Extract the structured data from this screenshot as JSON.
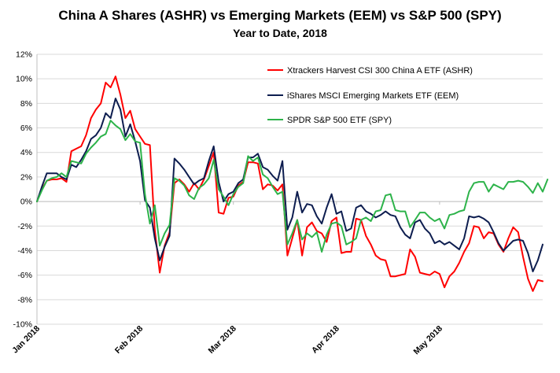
{
  "chart_data": {
    "type": "line",
    "title": "China A Shares (ASHR) vs Emerging Markets (EEM) vs S&P 500 (SPY)",
    "subtitle": "Year to Date, 2018",
    "xlabel": "",
    "ylabel": "",
    "ylim": [
      -10,
      12
    ],
    "yticks": [
      -10,
      -8,
      -6,
      -4,
      -2,
      0,
      2,
      4,
      6,
      8,
      10,
      12
    ],
    "ytick_labels": [
      "-10%",
      "-8%",
      "-6%",
      "-4%",
      "-2%",
      "0%",
      "2%",
      "4%",
      "6%",
      "8%",
      "10%",
      "12%"
    ],
    "x_tick_positions": [
      0,
      21,
      40,
      61,
      82
    ],
    "x_tick_labels": [
      "Jan 2018",
      "Feb 2018",
      "Mar 2018",
      "Apr 2018",
      "May 2018"
    ],
    "xlim": [
      0,
      103
    ],
    "grid": "horizontal",
    "legend_position": "top-right",
    "series": [
      {
        "name": "Xtrackers Harvest CSI 300 China A ETF (ASHR)",
        "color": "#ff0000",
        "values": [
          0,
          1.0,
          1.7,
          1.8,
          1.8,
          1.9,
          1.6,
          4.1,
          4.3,
          4.5,
          5.4,
          6.8,
          7.5,
          8.0,
          9.7,
          9.3,
          10.2,
          8.7,
          6.8,
          7.4,
          5.9,
          5.3,
          4.7,
          4.6,
          -2.3,
          -5.8,
          -3.6,
          -2.5,
          1.5,
          1.8,
          1.4,
          0.8,
          1.5,
          1.0,
          1.8,
          2.9,
          4.0,
          -0.9,
          -1.0,
          0.3,
          0.4,
          1.3,
          1.6,
          3.2,
          3.2,
          3.1,
          1.0,
          1.4,
          1.3,
          0.9,
          1.4,
          -4.4,
          -3.0,
          -1.5,
          -4.4,
          -2.1,
          -1.7,
          -2.4,
          -2.6,
          -3.3,
          -1.6,
          -1.3,
          -4.2,
          -4.1,
          -4.1,
          -1.4,
          -1.5,
          -2.8,
          -3.5,
          -4.4,
          -4.7,
          -4.8,
          -6.1,
          -6.1,
          -6.0,
          -5.9,
          -3.9,
          -4.5,
          -5.8,
          -5.9,
          -6.0,
          -5.7,
          -5.9,
          -7.0,
          -6.1,
          -5.7,
          -5.0,
          -4.1,
          -3.4,
          -2.0,
          -2.1,
          -3.0,
          -2.5,
          -2.6,
          -3.5,
          -4.1,
          -3.0,
          -2.1,
          -2.5,
          -4.5,
          -6.3,
          -7.3,
          -6.4,
          -6.5
        ]
      },
      {
        "name": "iShares MSCI Emerging Markets ETF (EEM)",
        "color": "#0d1d4f",
        "values": [
          0,
          1.2,
          2.3,
          2.3,
          2.3,
          2.0,
          1.8,
          3.0,
          2.8,
          3.4,
          4.1,
          5.1,
          5.4,
          6.0,
          7.2,
          6.8,
          8.4,
          7.5,
          5.3,
          6.3,
          4.9,
          3.3,
          0.1,
          -0.5,
          -3.0,
          -4.8,
          -3.7,
          -2.8,
          3.5,
          3.1,
          2.6,
          2.0,
          1.4,
          1.7,
          1.9,
          3.3,
          4.5,
          1.6,
          0.0,
          0.6,
          0.8,
          1.5,
          1.8,
          3.6,
          3.6,
          3.9,
          2.8,
          2.6,
          2.1,
          1.7,
          3.3,
          -2.3,
          -1.3,
          0.8,
          -0.9,
          -0.2,
          -0.3,
          -1.2,
          -1.8,
          -0.5,
          0.6,
          -1.0,
          -0.8,
          -2.4,
          -2.2,
          -0.5,
          -0.3,
          -0.8,
          -1.0,
          -1.3,
          -1.1,
          -0.8,
          -1.1,
          -1.2,
          -2.1,
          -2.7,
          -3.0,
          -1.7,
          -1.5,
          -2.2,
          -2.6,
          -3.4,
          -3.2,
          -3.5,
          -3.3,
          -3.6,
          -3.9,
          -3.0,
          -1.2,
          -1.3,
          -1.2,
          -1.4,
          -1.7,
          -2.5,
          -3.4,
          -4.0,
          -3.6,
          -3.2,
          -3.1,
          -3.2,
          -4.2,
          -5.7,
          -4.8,
          -3.5
        ]
      },
      {
        "name": "SPDR S&P 500 ETF (SPY)",
        "color": "#2db34a",
        "values": [
          0,
          0.9,
          1.7,
          1.9,
          2.0,
          2.3,
          2.0,
          3.3,
          3.2,
          3.1,
          3.9,
          4.4,
          4.8,
          5.3,
          5.5,
          6.6,
          6.2,
          5.9,
          5.0,
          5.5,
          4.9,
          4.8,
          0.6,
          -1.8,
          -0.3,
          -3.6,
          -2.6,
          -1.9,
          1.9,
          1.7,
          1.3,
          0.5,
          0.2,
          1.1,
          1.4,
          1.9,
          3.4,
          1.0,
          0.4,
          -0.3,
          0.6,
          1.2,
          1.5,
          3.7,
          3.3,
          3.6,
          2.2,
          1.9,
          1.2,
          0.6,
          0.8,
          -3.5,
          -2.6,
          -1.5,
          -3.1,
          -2.6,
          -2.9,
          -2.5,
          -4.1,
          -2.7,
          -1.8,
          -1.7,
          -2.0,
          -3.5,
          -3.3,
          -3.0,
          -1.5,
          -1.3,
          -1.6,
          -0.8,
          -0.7,
          0.5,
          0.6,
          -0.7,
          -0.8,
          -0.8,
          -2.1,
          -1.5,
          -0.9,
          -0.9,
          -1.3,
          -1.6,
          -1.4,
          -2.2,
          -1.1,
          -1.0,
          -0.8,
          -0.7,
          0.8,
          1.5,
          1.6,
          1.6,
          0.8,
          1.4,
          1.2,
          1.0,
          1.6,
          1.6,
          1.7,
          1.6,
          1.2,
          0.7,
          1.5,
          0.8,
          1.8
        ]
      }
    ]
  }
}
